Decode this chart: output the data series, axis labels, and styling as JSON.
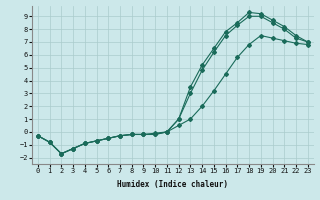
{
  "xlabel": "Humidex (Indice chaleur)",
  "bg_color": "#cce8ea",
  "grid_color": "#aacccc",
  "line_color": "#1a6b5a",
  "xlim": [
    -0.5,
    23.5
  ],
  "ylim": [
    -2.5,
    9.8
  ],
  "xticks": [
    0,
    1,
    2,
    3,
    4,
    5,
    6,
    7,
    8,
    9,
    10,
    11,
    12,
    13,
    14,
    15,
    16,
    17,
    18,
    19,
    20,
    21,
    22,
    23
  ],
  "yticks": [
    -2,
    -1,
    0,
    1,
    2,
    3,
    4,
    5,
    6,
    7,
    8,
    9
  ],
  "line1_x": [
    0,
    1,
    2,
    3,
    4,
    5,
    6,
    7,
    8,
    9,
    10,
    11,
    12,
    13,
    14,
    15,
    16,
    17,
    18,
    19,
    20,
    21,
    22,
    23
  ],
  "line1_y": [
    -0.3,
    -0.8,
    -1.7,
    -1.3,
    -0.9,
    -0.7,
    -0.5,
    -0.3,
    -0.2,
    -0.2,
    -0.2,
    0.0,
    1.0,
    3.5,
    5.2,
    6.5,
    7.8,
    8.5,
    9.3,
    9.2,
    8.7,
    8.2,
    7.5,
    7.0
  ],
  "line2_x": [
    0,
    1,
    2,
    3,
    4,
    5,
    6,
    7,
    8,
    9,
    10,
    11,
    12,
    13,
    14,
    15,
    16,
    17,
    18,
    19,
    20,
    21,
    22,
    23
  ],
  "line2_y": [
    -0.3,
    -0.8,
    -1.7,
    -1.3,
    -0.9,
    -0.7,
    -0.5,
    -0.3,
    -0.2,
    -0.2,
    -0.2,
    0.0,
    1.0,
    3.0,
    4.8,
    6.2,
    7.5,
    8.3,
    9.0,
    9.0,
    8.5,
    8.0,
    7.3,
    7.0
  ],
  "line3_x": [
    0,
    1,
    2,
    3,
    4,
    5,
    6,
    7,
    8,
    9,
    10,
    11,
    12,
    13,
    14,
    15,
    16,
    17,
    18,
    19,
    20,
    21,
    22,
    23
  ],
  "line3_y": [
    -0.3,
    -0.8,
    -1.7,
    -1.3,
    -0.9,
    -0.7,
    -0.5,
    -0.3,
    -0.2,
    -0.2,
    -0.1,
    0.0,
    0.5,
    1.0,
    2.0,
    3.2,
    4.5,
    5.8,
    6.8,
    7.5,
    7.3,
    7.1,
    6.9,
    6.8
  ]
}
